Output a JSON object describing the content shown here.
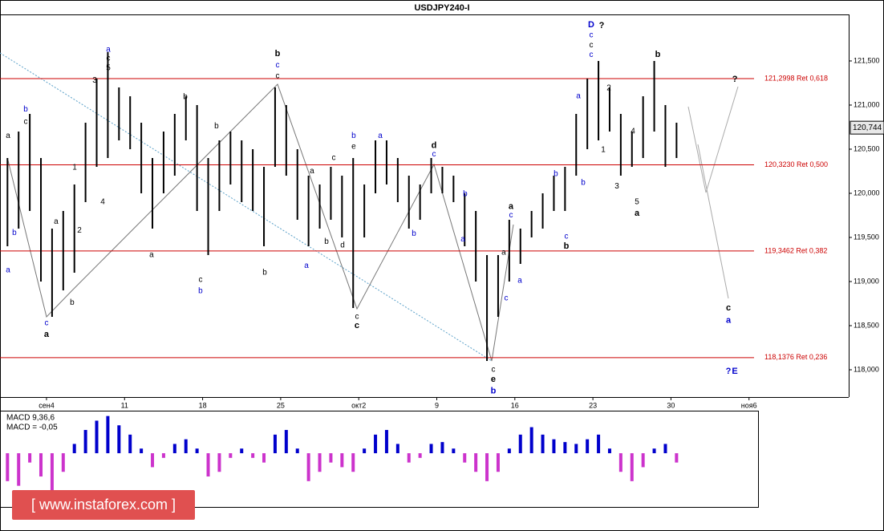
{
  "chart_data": {
    "type": "ohlc",
    "title": "USDJPY240-I",
    "xlim": [
      -4.17,
      71.94
    ],
    "xticks": [
      {
        "value": 0,
        "label": "сен4"
      },
      {
        "value": 7,
        "label": "11"
      },
      {
        "value": 14,
        "label": "18"
      },
      {
        "value": 21,
        "label": "25"
      },
      {
        "value": 28,
        "label": "окт2"
      },
      {
        "value": 35,
        "label": "9"
      },
      {
        "value": 42,
        "label": "16"
      },
      {
        "value": 49,
        "label": "23"
      },
      {
        "value": 56,
        "label": "30"
      },
      {
        "value": 63,
        "label": "ноя6"
      }
    ],
    "ylim": [
      117.691,
      122.027
    ],
    "yticks": [
      {
        "value": 118,
        "label": "118,000"
      },
      {
        "value": 118.5,
        "label": "118,500"
      },
      {
        "value": 119,
        "label": "119,000"
      },
      {
        "value": 119.5,
        "label": "119,500"
      },
      {
        "value": 120,
        "label": "120,000"
      },
      {
        "value": 120.5,
        "label": "120,500"
      },
      {
        "value": 121,
        "label": "121,000"
      },
      {
        "value": 121.5,
        "label": "121,500"
      }
    ],
    "color": "#000000",
    "levels_color": "#cc0000",
    "levels": [
      {
        "value": 121.2998,
        "label": "121,2998 Ret 0,618"
      },
      {
        "value": 120.323,
        "label": "120,3230 Ret 0,500"
      },
      {
        "value": 119.3462,
        "label": "119,3462 Ret 0,382"
      },
      {
        "value": 118.1376,
        "label": "118,1376 Ret 0,236"
      }
    ],
    "current_price": {
      "value": 120.744,
      "label": "120,744"
    },
    "bars": {
      "x": [
        -3.5,
        -2.5,
        -1.5,
        -0.5,
        0.5,
        1.5,
        2.5,
        3.5,
        4.5,
        5.5,
        6.5,
        7.5,
        8.5,
        9.5,
        10.5,
        11.5,
        12.5,
        13.5,
        14.5,
        15.5,
        16.5,
        17.5,
        18.5,
        19.5,
        20.5,
        21.5,
        22.5,
        23.5,
        24.5,
        25.5,
        26.5,
        27.5,
        28.5,
        29.5,
        30.5,
        31.5,
        32.5,
        33.5,
        34.5,
        35.5,
        36.5,
        37.5,
        38.5,
        39.5,
        40.5,
        41.5,
        42.5,
        43.5,
        44.5,
        45.5,
        46.5,
        47.5,
        48.5,
        49.5,
        50.5,
        51.5,
        52.5,
        53.5,
        54.5,
        55.5,
        56.5
      ],
      "high": [
        120.4,
        120.7,
        120.9,
        120.4,
        119.6,
        119.8,
        120.1,
        120.8,
        121.3,
        121.6,
        121.2,
        121.1,
        120.8,
        120.4,
        120.7,
        120.9,
        121.1,
        121.0,
        120.4,
        120.6,
        120.7,
        120.6,
        120.5,
        120.3,
        121.2,
        121.0,
        120.5,
        120.2,
        120.1,
        120.3,
        120.2,
        120.4,
        120.1,
        120.6,
        120.6,
        120.4,
        120.2,
        120.1,
        120.4,
        120.3,
        120.2,
        120.0,
        119.8,
        119.3,
        119.3,
        119.7,
        119.6,
        119.8,
        120.0,
        120.2,
        120.3,
        120.9,
        121.3,
        121.5,
        121.2,
        120.9,
        120.7,
        121.1,
        121.5,
        121.0,
        120.8
      ],
      "low": [
        119.4,
        119.6,
        119.8,
        119.0,
        118.6,
        118.9,
        119.1,
        119.9,
        120.3,
        120.4,
        120.6,
        120.5,
        120.0,
        119.6,
        120.0,
        120.2,
        120.6,
        119.8,
        119.3,
        119.8,
        120.1,
        119.9,
        119.8,
        119.4,
        120.3,
        120.2,
        119.7,
        119.4,
        119.6,
        119.7,
        119.5,
        118.7,
        119.5,
        120.0,
        120.1,
        119.9,
        119.6,
        119.7,
        120.0,
        120.0,
        119.9,
        119.4,
        119.0,
        118.1,
        118.6,
        119.0,
        119.2,
        119.5,
        119.6,
        119.8,
        119.8,
        120.2,
        120.5,
        120.6,
        120.7,
        120.2,
        120.3,
        120.4,
        120.7,
        120.3,
        120.4
      ]
    },
    "macd": {
      "title": "MACD 9,36,6",
      "value_text": "MACD = -0,05",
      "ylim": [
        -0.56,
        0.44
      ],
      "pos_color": "#0000cc",
      "neg_color": "#cc33cc",
      "values": [
        -0.3,
        -0.35,
        -0.1,
        -0.25,
        -0.4,
        -0.2,
        0.1,
        0.25,
        0.35,
        0.4,
        0.3,
        0.2,
        0.05,
        -0.15,
        -0.05,
        0.1,
        0.15,
        0.05,
        -0.25,
        -0.2,
        -0.05,
        0.05,
        -0.05,
        -0.1,
        0.2,
        0.25,
        0.05,
        -0.3,
        -0.2,
        -0.1,
        -0.15,
        -0.2,
        0.05,
        0.2,
        0.25,
        0.1,
        -0.1,
        -0.05,
        0.1,
        0.12,
        0.05,
        -0.1,
        -0.2,
        -0.3,
        -0.2,
        0.05,
        0.2,
        0.28,
        0.2,
        0.15,
        0.12,
        0.1,
        0.15,
        0.2,
        0.05,
        -0.2,
        -0.3,
        -0.15,
        0.05,
        0.1,
        -0.1
      ]
    },
    "annotations": [
      {
        "text": "a",
        "x": -3.45,
        "y": 120.65,
        "color": "#000000"
      },
      {
        "text": "b",
        "x": -1.87,
        "y": 120.95,
        "color": "#0000cc"
      },
      {
        "text": "c",
        "x": -1.87,
        "y": 120.81,
        "color": "#000000"
      },
      {
        "text": "b",
        "x": -2.88,
        "y": 119.55,
        "color": "#0000cc"
      },
      {
        "text": "a",
        "x": -3.45,
        "y": 119.13,
        "color": "#0000cc"
      },
      {
        "text": "c",
        "x": 0,
        "y": 118.53,
        "color": "#0000cc"
      },
      {
        "text": "a",
        "x": 0,
        "y": 118.4,
        "color": "#000000",
        "bold": true
      },
      {
        "text": "a",
        "x": 0.86,
        "y": 119.68,
        "color": "#000000"
      },
      {
        "text": "b",
        "x": 2.3,
        "y": 118.76,
        "color": "#000000"
      },
      {
        "text": "1",
        "x": 2.52,
        "y": 120.29,
        "color": "#000000"
      },
      {
        "text": "2",
        "x": 2.95,
        "y": 119.58,
        "color": "#000000"
      },
      {
        "text": "3",
        "x": 4.32,
        "y": 121.28,
        "color": "#000000"
      },
      {
        "text": "4",
        "x": 5.04,
        "y": 119.9,
        "color": "#000000"
      },
      {
        "text": "5",
        "x": 5.54,
        "y": 121.42,
        "color": "#000000"
      },
      {
        "text": "c",
        "x": 5.54,
        "y": 121.53,
        "color": "#000000"
      },
      {
        "text": "a",
        "x": 5.54,
        "y": 121.63,
        "color": "#0000cc"
      },
      {
        "text": "a",
        "x": 9.42,
        "y": 119.3,
        "color": "#000000"
      },
      {
        "text": "b",
        "x": 12.45,
        "y": 121.09,
        "color": "#000000"
      },
      {
        "text": "c",
        "x": 13.81,
        "y": 119.02,
        "color": "#000000"
      },
      {
        "text": "b",
        "x": 13.81,
        "y": 118.89,
        "color": "#0000cc"
      },
      {
        "text": "b",
        "x": 15.25,
        "y": 120.76,
        "color": "#000000"
      },
      {
        "text": "b",
        "x": 20.72,
        "y": 121.58,
        "color": "#000000",
        "bold": true
      },
      {
        "text": "c",
        "x": 20.72,
        "y": 121.45,
        "color": "#0000cc"
      },
      {
        "text": "c",
        "x": 20.72,
        "y": 121.33,
        "color": "#000000"
      },
      {
        "text": "b",
        "x": 19.57,
        "y": 119.1,
        "color": "#000000"
      },
      {
        "text": "a",
        "x": 23.31,
        "y": 119.18,
        "color": "#0000cc"
      },
      {
        "text": "a",
        "x": 23.81,
        "y": 120.25,
        "color": "#000000"
      },
      {
        "text": "b",
        "x": 25.11,
        "y": 119.45,
        "color": "#000000"
      },
      {
        "text": "c",
        "x": 25.76,
        "y": 120.4,
        "color": "#000000"
      },
      {
        "text": "d",
        "x": 26.55,
        "y": 119.41,
        "color": "#000000"
      },
      {
        "text": "b",
        "x": 27.55,
        "y": 120.65,
        "color": "#0000cc"
      },
      {
        "text": "e",
        "x": 27.55,
        "y": 120.53,
        "color": "#000000"
      },
      {
        "text": "c",
        "x": 27.84,
        "y": 118.6,
        "color": "#000000"
      },
      {
        "text": "c",
        "x": 27.84,
        "y": 118.5,
        "color": "#000000",
        "bold": true
      },
      {
        "text": "a",
        "x": 29.93,
        "y": 120.65,
        "color": "#0000cc"
      },
      {
        "text": "b",
        "x": 32.95,
        "y": 119.54,
        "color": "#0000cc"
      },
      {
        "text": "d",
        "x": 34.75,
        "y": 120.54,
        "color": "#000000",
        "bold": true
      },
      {
        "text": "c",
        "x": 34.75,
        "y": 120.44,
        "color": "#0000cc"
      },
      {
        "text": "b",
        "x": 37.55,
        "y": 119.99,
        "color": "#0000cc"
      },
      {
        "text": "a",
        "x": 37.34,
        "y": 119.48,
        "color": "#0000cc"
      },
      {
        "text": "c",
        "x": 40.07,
        "y": 118.0,
        "color": "#000000"
      },
      {
        "text": "e",
        "x": 40.07,
        "y": 117.89,
        "color": "#000000",
        "bold": true
      },
      {
        "text": "b",
        "x": 40.07,
        "y": 117.76,
        "color": "#0000cc",
        "bold": true
      },
      {
        "text": "a",
        "x": 41.0,
        "y": 119.33,
        "color": "#000000"
      },
      {
        "text": "c",
        "x": 41.22,
        "y": 118.81,
        "color": "#0000cc"
      },
      {
        "text": "a",
        "x": 41.65,
        "y": 119.85,
        "color": "#000000",
        "bold": true
      },
      {
        "text": "c",
        "x": 41.65,
        "y": 119.75,
        "color": "#0000cc"
      },
      {
        "text": "a",
        "x": 42.45,
        "y": 119.01,
        "color": "#0000cc"
      },
      {
        "text": "b",
        "x": 45.68,
        "y": 120.22,
        "color": "#0000cc"
      },
      {
        "text": "c",
        "x": 46.62,
        "y": 119.51,
        "color": "#0000cc"
      },
      {
        "text": "b",
        "x": 46.62,
        "y": 119.4,
        "color": "#000000",
        "bold": true
      },
      {
        "text": "a",
        "x": 47.7,
        "y": 121.1,
        "color": "#0000cc"
      },
      {
        "text": "b",
        "x": 48.13,
        "y": 120.12,
        "color": "#0000cc"
      },
      {
        "text": "D",
        "x": 48.85,
        "y": 121.91,
        "color": "#0000cc",
        "bold": true
      },
      {
        "text": "?",
        "x": 49.78,
        "y": 121.9,
        "color": "#000000",
        "bold": true
      },
      {
        "text": "c",
        "x": 48.85,
        "y": 121.79,
        "color": "#0000cc"
      },
      {
        "text": "c",
        "x": 48.85,
        "y": 121.68,
        "color": "#000000"
      },
      {
        "text": "c",
        "x": 48.85,
        "y": 121.57,
        "color": "#0000cc"
      },
      {
        "text": "2",
        "x": 50.43,
        "y": 121.19,
        "color": "#000000"
      },
      {
        "text": "1",
        "x": 49.93,
        "y": 120.49,
        "color": "#000000"
      },
      {
        "text": "3",
        "x": 51.15,
        "y": 120.08,
        "color": "#000000"
      },
      {
        "text": "4",
        "x": 52.59,
        "y": 120.7,
        "color": "#000000"
      },
      {
        "text": "5",
        "x": 52.95,
        "y": 119.9,
        "color": "#000000"
      },
      {
        "text": "a",
        "x": 52.95,
        "y": 119.77,
        "color": "#000000",
        "bold": true
      },
      {
        "text": "b",
        "x": 54.82,
        "y": 121.57,
        "color": "#000000",
        "bold": true
      },
      {
        "text": "?",
        "x": 61.73,
        "y": 121.29,
        "color": "#000000",
        "bold": true
      },
      {
        "text": "c",
        "x": 61.15,
        "y": 118.7,
        "color": "#000000",
        "bold": true
      },
      {
        "text": "a",
        "x": 61.15,
        "y": 118.56,
        "color": "#0000cc",
        "bold": true
      },
      {
        "text": "?",
        "x": 61.15,
        "y": 117.98,
        "color": "#0000cc",
        "bold": true
      },
      {
        "text": "E",
        "x": 61.73,
        "y": 117.98,
        "color": "#0000cc",
        "bold": true
      }
    ],
    "watermark": "[ www.instaforex.com ]"
  }
}
